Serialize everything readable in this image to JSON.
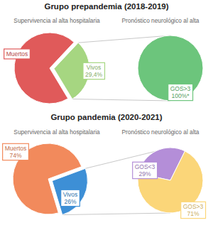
{
  "headings": [
    "Grupo prepandemia (2018-2019)",
    "Grupo pandemia (2020-2021)"
  ],
  "chart_data": [
    {
      "type": "pie",
      "title": "Supervivencia al alta hospitalaria",
      "categories": [
        "Muertos",
        "Vivos"
      ],
      "values": [
        70.6,
        29.4
      ],
      "value_labels": [
        null,
        "29,4%"
      ],
      "colors": [
        "#e05a5a",
        "#a6d681"
      ],
      "data_labels": true
    },
    {
      "type": "pie",
      "title": "Pronóstico neurológico al alta",
      "categories": [
        "GOS>3"
      ],
      "values": [
        100
      ],
      "value_labels": [
        "100%*"
      ],
      "colors": [
        "#6cc57c"
      ],
      "data_labels": true
    },
    {
      "type": "pie",
      "title": "Supervivencia al alta hospitalaria",
      "categories": [
        "Muertos",
        "Vivos"
      ],
      "values": [
        74,
        26
      ],
      "value_labels": [
        "74%",
        "26%"
      ],
      "colors": [
        "#f28a5c",
        "#3d8fd6"
      ],
      "data_labels": true
    },
    {
      "type": "pie",
      "title": "Pronóstico neurológico al alta",
      "categories": [
        "GOS<3",
        "GOS>3"
      ],
      "values": [
        29,
        71
      ],
      "value_labels": [
        "29%",
        "71%"
      ],
      "colors": [
        "#b48ed8",
        "#fbd679"
      ],
      "data_labels": true
    }
  ]
}
